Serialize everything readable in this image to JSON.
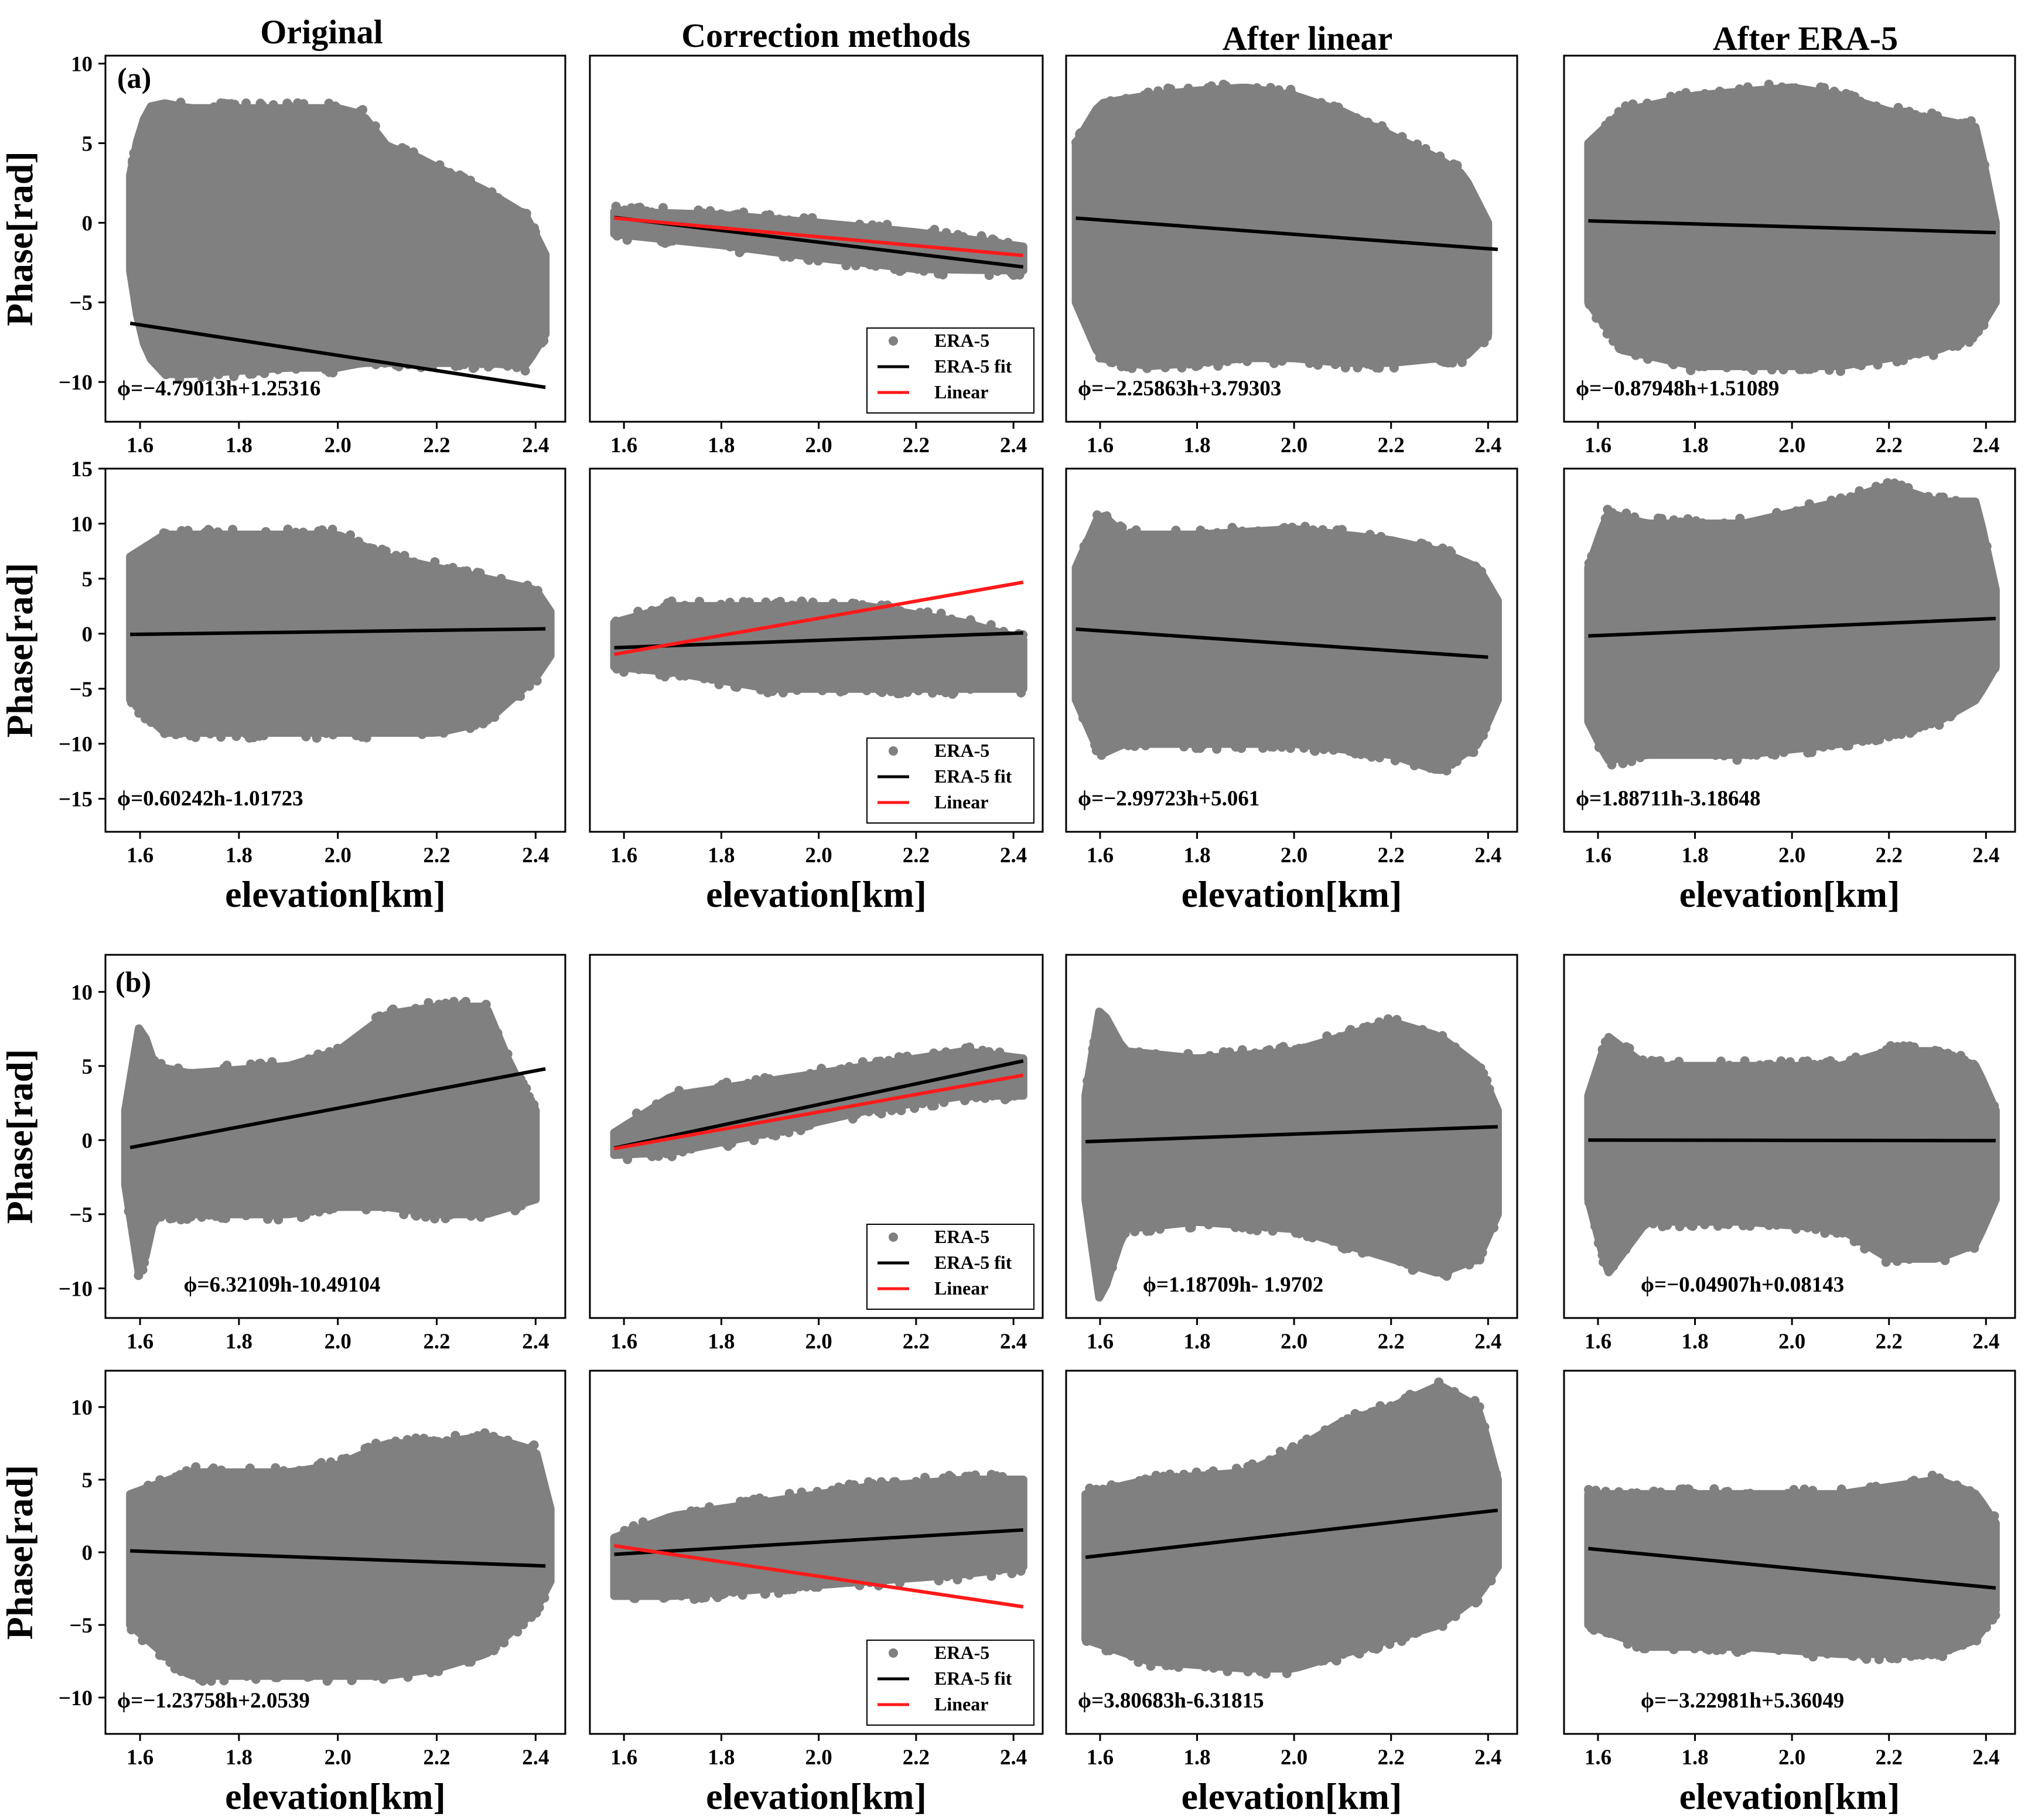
{
  "column_titles": [
    "Original",
    "Correction methods",
    "After linear",
    "After ERA-5"
  ],
  "panel_labels": {
    "a": "(a)",
    "b": "(b)"
  },
  "axis_labels": {
    "x": "elevation[km]",
    "y": "Phase[rad]"
  },
  "legend_labels": [
    "ERA-5",
    "ERA-5 fit",
    "Linear"
  ],
  "colors": {
    "scatter": "#808080",
    "fit": "#000000",
    "linear": "#ff1a1a",
    "frame": "#000000"
  },
  "chart_data": [
    {
      "id": "a1-original",
      "type": "scatter",
      "group": "a",
      "row": 0,
      "col": 0,
      "xlim": [
        1.53,
        2.46
      ],
      "ylim": [
        -12.5,
        10.5
      ],
      "xticks": [
        1.6,
        1.8,
        2.0,
        2.2,
        2.4
      ],
      "yticks": [
        -10,
        -5,
        0,
        5,
        10
      ],
      "ytick_labels": [
        "−10",
        "−5",
        "0",
        "5",
        "10"
      ],
      "show_yticks": true,
      "show_ylabel": true,
      "show_xlabel": false,
      "cloud": {
        "x": [
          1.58,
          1.6,
          1.62,
          1.65,
          1.7,
          1.8,
          1.9,
          2.0,
          2.05,
          2.1,
          2.15,
          2.2,
          2.3,
          2.38,
          2.42
        ],
        "upper": [
          3,
          6,
          7.3,
          7.5,
          7.2,
          7.2,
          7.2,
          7.2,
          6.8,
          4.8,
          4.3,
          3.5,
          2,
          0.5,
          -2
        ],
        "lower": [
          -3,
          -7,
          -8.5,
          -9.5,
          -9.5,
          -9.3,
          -9.1,
          -9.1,
          -8.8,
          -8.8,
          -8.8,
          -8.8,
          -8.8,
          -9,
          -7
        ]
      },
      "fit": {
        "slope": -4.79013,
        "intercept": 1.25316,
        "x": [
          1.58,
          2.42
        ]
      },
      "equation": "ϕ=−4.79013h+1.25316",
      "eq_pos": "bottom-left"
    },
    {
      "id": "a1-correction",
      "type": "scatter",
      "group": "a",
      "row": 0,
      "col": 1,
      "xlim": [
        1.53,
        2.46
      ],
      "ylim": [
        -12.5,
        10.5
      ],
      "xticks": [
        1.6,
        1.8,
        2.0,
        2.2,
        2.4
      ],
      "yticks": [],
      "show_yticks": false,
      "show_ylabel": false,
      "show_xlabel": false,
      "cloud": {
        "x": [
          1.58,
          1.8,
          2.0,
          2.2,
          2.42
        ],
        "upper": [
          0.7,
          0.5,
          0,
          -0.6,
          -1.5
        ],
        "lower": [
          -0.7,
          -1.4,
          -2.2,
          -2.9,
          -3
        ]
      },
      "fit": {
        "slope": -3.7,
        "intercept": 6.18,
        "x": [
          1.58,
          2.42
        ]
      },
      "linear": {
        "slope": -2.8,
        "intercept": 4.72,
        "x": [
          1.58,
          2.42
        ]
      },
      "legend": true
    },
    {
      "id": "a1-after-linear",
      "type": "scatter",
      "group": "a",
      "row": 0,
      "col": 2,
      "xlim": [
        1.53,
        2.46
      ],
      "ylim": [
        -12.5,
        10.5
      ],
      "xticks": [
        1.6,
        1.8,
        2.0,
        2.2,
        2.4
      ],
      "yticks": [],
      "show_yticks": false,
      "show_ylabel": false,
      "show_xlabel": false,
      "cloud": {
        "x": [
          1.55,
          1.6,
          1.7,
          1.8,
          1.9,
          2.0,
          2.1,
          2.2,
          2.3,
          2.35,
          2.4
        ],
        "upper": [
          5,
          7.5,
          8,
          8.3,
          8.5,
          8,
          7,
          5.5,
          4,
          3,
          0
        ],
        "lower": [
          -5,
          -8.5,
          -9,
          -8.8,
          -8.5,
          -8.5,
          -8.8,
          -8.8,
          -8.5,
          -8.5,
          -7
        ]
      },
      "fit": {
        "slope": -2.25863,
        "intercept": 3.79303,
        "x": [
          1.55,
          2.42
        ]
      },
      "equation": "ϕ=−2.25863h+3.79303",
      "eq_pos": "bottom-left"
    },
    {
      "id": "a1-after-era5",
      "type": "scatter",
      "group": "a",
      "row": 0,
      "col": 3,
      "xlim": [
        1.53,
        2.46
      ],
      "ylim": [
        -12.5,
        10.5
      ],
      "xticks": [
        1.6,
        1.8,
        2.0,
        2.2,
        2.4
      ],
      "yticks": [],
      "show_yticks": false,
      "show_ylabel": false,
      "show_xlabel": false,
      "cloud": {
        "x": [
          1.58,
          1.65,
          1.8,
          2.0,
          2.1,
          2.2,
          2.3,
          2.38,
          2.42
        ],
        "upper": [
          5,
          7,
          8,
          8.5,
          8,
          7,
          6.5,
          6,
          0
        ],
        "lower": [
          -5,
          -8,
          -9,
          -9,
          -9,
          -8.5,
          -8,
          -7,
          -5
        ]
      },
      "fit": {
        "slope": -0.87948,
        "intercept": 1.51089,
        "x": [
          1.58,
          2.42
        ]
      },
      "equation": "ϕ=−0.87948h+1.51089",
      "eq_pos": "bottom-left"
    },
    {
      "id": "a2-original",
      "type": "scatter",
      "group": "a",
      "row": 1,
      "col": 0,
      "xlim": [
        1.53,
        2.46
      ],
      "ylim": [
        -18,
        15
      ],
      "xticks": [
        1.6,
        1.8,
        2.0,
        2.2,
        2.4
      ],
      "yticks": [
        -15,
        -10,
        -5,
        0,
        5,
        10,
        15
      ],
      "ytick_labels": [
        "−15",
        "−10",
        "−5",
        "0",
        "5",
        "10",
        "15"
      ],
      "show_yticks": true,
      "show_ylabel": true,
      "show_xlabel": true,
      "cloud": {
        "x": [
          1.58,
          1.65,
          1.8,
          1.9,
          2.0,
          2.1,
          2.2,
          2.3,
          2.4,
          2.43
        ],
        "upper": [
          7,
          9,
          9,
          9,
          9,
          7,
          6,
          5,
          4,
          2
        ],
        "lower": [
          -6,
          -9,
          -9,
          -9,
          -9,
          -9,
          -9,
          -8,
          -4,
          -2
        ]
      },
      "fit": {
        "slope": 0.60242,
        "intercept": -1.01723,
        "x": [
          1.58,
          2.42
        ]
      },
      "equation": "ϕ=0.60242h-1.01723",
      "eq_pos": "bottom-left"
    },
    {
      "id": "a2-correction",
      "type": "scatter",
      "group": "a",
      "row": 1,
      "col": 1,
      "xlim": [
        1.53,
        2.46
      ],
      "ylim": [
        -18,
        15
      ],
      "xticks": [
        1.6,
        1.8,
        2.0,
        2.2,
        2.4
      ],
      "yticks": [],
      "show_yticks": false,
      "show_ylabel": false,
      "show_xlabel": true,
      "cloud": {
        "x": [
          1.58,
          1.7,
          1.9,
          2.1,
          2.3,
          2.42
        ],
        "upper": [
          1,
          2.5,
          2.5,
          2.5,
          1,
          -0.5
        ],
        "lower": [
          -3,
          -3.5,
          -5,
          -5,
          -5,
          -5
        ]
      },
      "fit": {
        "slope": 1.6,
        "intercept": -3.8,
        "x": [
          1.58,
          2.42
        ]
      },
      "linear": {
        "slope": 7.8,
        "intercept": -14.2,
        "x": [
          1.58,
          2.42
        ]
      },
      "legend": true
    },
    {
      "id": "a2-after-linear",
      "type": "scatter",
      "group": "a",
      "row": 1,
      "col": 2,
      "xlim": [
        1.53,
        2.46
      ],
      "ylim": [
        -18,
        15
      ],
      "xticks": [
        1.6,
        1.8,
        2.0,
        2.2,
        2.4
      ],
      "yticks": [],
      "show_yticks": false,
      "show_ylabel": false,
      "show_xlabel": true,
      "cloud": {
        "x": [
          1.55,
          1.6,
          1.65,
          1.8,
          2.0,
          2.2,
          2.3,
          2.38,
          2.42
        ],
        "upper": [
          6,
          11,
          9,
          9,
          9.5,
          8.5,
          7.5,
          6,
          3
        ],
        "lower": [
          -6,
          -11,
          -10,
          -10,
          -10,
          -11,
          -12.5,
          -10,
          -6
        ]
      },
      "fit": {
        "slope": -2.99723,
        "intercept": 5.061,
        "x": [
          1.55,
          2.4
        ]
      },
      "equation": "ϕ=−2.99723h+5.061",
      "eq_pos": "bottom-left"
    },
    {
      "id": "a2-after-era5",
      "type": "scatter",
      "group": "a",
      "row": 1,
      "col": 3,
      "xlim": [
        1.53,
        2.46
      ],
      "ylim": [
        -18,
        15
      ],
      "xticks": [
        1.6,
        1.8,
        2.0,
        2.2,
        2.4
      ],
      "yticks": [],
      "show_yticks": false,
      "show_ylabel": false,
      "show_xlabel": true,
      "cloud": {
        "x": [
          1.58,
          1.62,
          1.7,
          1.9,
          2.1,
          2.2,
          2.3,
          2.38,
          2.42
        ],
        "upper": [
          6,
          11,
          10,
          10,
          12,
          13.5,
          12,
          12,
          4
        ],
        "lower": [
          -8,
          -11.5,
          -11,
          -11,
          -10,
          -9,
          -8,
          -6,
          -3
        ]
      },
      "fit": {
        "slope": 1.88711,
        "intercept": -3.18648,
        "x": [
          1.58,
          2.42
        ]
      },
      "equation": "ϕ=1.88711h-3.18648",
      "eq_pos": "bottom-left"
    },
    {
      "id": "b1-original",
      "type": "scatter",
      "group": "b",
      "row": 2,
      "col": 0,
      "xlim": [
        1.53,
        2.46
      ],
      "ylim": [
        -12,
        12.5
      ],
      "xticks": [
        1.6,
        1.8,
        2.0,
        2.2,
        2.4
      ],
      "yticks": [
        -10,
        -5,
        0,
        5,
        10
      ],
      "ytick_labels": [
        "−10",
        "−5",
        "0",
        "5",
        "10"
      ],
      "show_yticks": true,
      "show_ylabel": true,
      "show_xlabel": false,
      "cloud": {
        "x": [
          1.57,
          1.6,
          1.63,
          1.7,
          1.9,
          2.0,
          2.1,
          2.2,
          2.3,
          2.35,
          2.4
        ],
        "upper": [
          2,
          8,
          5,
          4.5,
          5,
          6,
          8.5,
          9,
          9,
          5,
          2
        ],
        "lower": [
          -3,
          -9.5,
          -5,
          -5,
          -5,
          -4.5,
          -4.5,
          -5,
          -5,
          -4.5,
          -4
        ]
      },
      "fit": {
        "slope": 6.32109,
        "intercept": -10.49104,
        "x": [
          1.58,
          2.42
        ]
      },
      "equation": "ϕ=6.32109h-10.49104",
      "eq_pos": "bottom-center"
    },
    {
      "id": "b1-correction",
      "type": "scatter",
      "group": "b",
      "row": 2,
      "col": 1,
      "xlim": [
        1.53,
        2.46
      ],
      "ylim": [
        -12,
        12.5
      ],
      "xticks": [
        1.6,
        1.8,
        2.0,
        2.2,
        2.4
      ],
      "yticks": [],
      "show_yticks": false,
      "show_ylabel": false,
      "show_xlabel": false,
      "cloud": {
        "x": [
          1.58,
          1.7,
          1.9,
          2.1,
          2.3,
          2.42
        ],
        "upper": [
          0.5,
          3,
          4,
          5,
          6,
          5.5
        ],
        "lower": [
          -1,
          -0.8,
          0.5,
          2,
          3,
          3
        ]
      },
      "fit": {
        "slope": 7.0,
        "intercept": -11.6,
        "x": [
          1.58,
          2.42
        ]
      },
      "linear": {
        "slope": 5.9,
        "intercept": -9.9,
        "x": [
          1.58,
          2.42
        ]
      },
      "legend": true
    },
    {
      "id": "b1-after-linear",
      "type": "scatter",
      "group": "b",
      "row": 2,
      "col": 2,
      "xlim": [
        1.53,
        2.46
      ],
      "ylim": [
        -12,
        12.5
      ],
      "xticks": [
        1.6,
        1.8,
        2.0,
        2.2,
        2.4
      ],
      "yticks": [],
      "show_yticks": false,
      "show_ylabel": false,
      "show_xlabel": false,
      "cloud": {
        "x": [
          1.57,
          1.6,
          1.65,
          1.8,
          2.0,
          2.2,
          2.3,
          2.38,
          2.42
        ],
        "upper": [
          3,
          9,
          6,
          5.5,
          6,
          8,
          7,
          5,
          2
        ],
        "lower": [
          -4,
          -11,
          -6,
          -5.5,
          -6,
          -8,
          -9,
          -8,
          -5
        ]
      },
      "fit": {
        "slope": 1.18709,
        "intercept": -1.9702,
        "x": [
          1.57,
          2.42
        ]
      },
      "equation": "ϕ=1.18709h- 1.9702",
      "eq_pos": "bottom-center"
    },
    {
      "id": "b1-after-era5",
      "type": "scatter",
      "group": "b",
      "row": 2,
      "col": 3,
      "xlim": [
        1.53,
        2.46
      ],
      "ylim": [
        -12,
        12.5
      ],
      "xticks": [
        1.6,
        1.8,
        2.0,
        2.2,
        2.4
      ],
      "yticks": [],
      "show_yticks": false,
      "show_ylabel": false,
      "show_xlabel": false,
      "cloud": {
        "x": [
          1.58,
          1.62,
          1.7,
          1.9,
          2.1,
          2.2,
          2.3,
          2.38,
          2.42
        ],
        "upper": [
          3,
          7,
          5,
          5,
          5,
          6,
          6,
          5,
          2
        ],
        "lower": [
          -4,
          -9,
          -5.5,
          -5.5,
          -6,
          -8,
          -8,
          -7,
          -4
        ]
      },
      "fit": {
        "slope": -0.04907,
        "intercept": 0.08143,
        "x": [
          1.58,
          2.42
        ]
      },
      "equation": "ϕ=−0.04907h+0.08143",
      "eq_pos": "bottom-center"
    },
    {
      "id": "b2-original",
      "type": "scatter",
      "group": "b",
      "row": 3,
      "col": 0,
      "xlim": [
        1.53,
        2.46
      ],
      "ylim": [
        -12.5,
        12.5
      ],
      "xticks": [
        1.6,
        1.8,
        2.0,
        2.2,
        2.4
      ],
      "yticks": [
        -10,
        -5,
        0,
        5,
        10
      ],
      "ytick_labels": [
        "−10",
        "−5",
        "0",
        "5",
        "10"
      ],
      "show_yticks": true,
      "show_ylabel": true,
      "show_xlabel": true,
      "cloud": {
        "x": [
          1.58,
          1.7,
          1.9,
          2.0,
          2.1,
          2.2,
          2.3,
          2.4,
          2.43
        ],
        "upper": [
          4,
          5.5,
          5.5,
          6,
          7.5,
          7.5,
          8,
          7,
          3
        ],
        "lower": [
          -5,
          -8.5,
          -8.5,
          -8.5,
          -8.5,
          -8,
          -7,
          -4,
          -2
        ]
      },
      "fit": {
        "slope": -1.23758,
        "intercept": 2.0539,
        "x": [
          1.58,
          2.42
        ]
      },
      "equation": "ϕ=−1.23758h+2.0539",
      "eq_pos": "bottom-left"
    },
    {
      "id": "b2-correction",
      "type": "scatter",
      "group": "b",
      "row": 3,
      "col": 1,
      "xlim": [
        1.53,
        2.46
      ],
      "ylim": [
        -12.5,
        12.5
      ],
      "xticks": [
        1.6,
        1.8,
        2.0,
        2.2,
        2.4
      ],
      "yticks": [],
      "show_yticks": false,
      "show_ylabel": false,
      "show_xlabel": true,
      "cloud": {
        "x": [
          1.58,
          1.7,
          1.9,
          2.1,
          2.3,
          2.42
        ],
        "upper": [
          1,
          2.5,
          3.5,
          4.5,
          5,
          5
        ],
        "lower": [
          -3,
          -3,
          -2.5,
          -2,
          -1.5,
          -1
        ]
      },
      "fit": {
        "slope": 2.0,
        "intercept": -3.3,
        "x": [
          1.58,
          2.42
        ]
      },
      "linear": {
        "slope": -5.0,
        "intercept": 8.35,
        "x": [
          1.58,
          2.42
        ]
      },
      "legend": true
    },
    {
      "id": "b2-after-linear",
      "type": "scatter",
      "group": "b",
      "row": 3,
      "col": 2,
      "xlim": [
        1.53,
        2.46
      ],
      "ylim": [
        -12.5,
        12.5
      ],
      "xticks": [
        1.6,
        1.8,
        2.0,
        2.2,
        2.4
      ],
      "yticks": [],
      "show_yticks": false,
      "show_ylabel": false,
      "show_xlabel": true,
      "cloud": {
        "x": [
          1.57,
          1.7,
          1.9,
          2.0,
          2.1,
          2.2,
          2.3,
          2.38,
          2.42
        ],
        "upper": [
          4,
          5,
          5.5,
          7,
          9,
          10,
          11.5,
          10,
          5
        ],
        "lower": [
          -6,
          -7.5,
          -8,
          -8,
          -7,
          -6,
          -5,
          -3,
          -1
        ]
      },
      "fit": {
        "slope": 3.80683,
        "intercept": -6.31815,
        "x": [
          1.57,
          2.42
        ]
      },
      "equation": "ϕ=3.80683h-6.31815",
      "eq_pos": "bottom-left"
    },
    {
      "id": "b2-after-era5",
      "type": "scatter",
      "group": "b",
      "row": 3,
      "col": 3,
      "xlim": [
        1.53,
        2.46
      ],
      "ylim": [
        -12.5,
        12.5
      ],
      "xticks": [
        1.6,
        1.8,
        2.0,
        2.2,
        2.4
      ],
      "yticks": [],
      "show_yticks": false,
      "show_ylabel": false,
      "show_xlabel": true,
      "cloud": {
        "x": [
          1.58,
          1.7,
          1.9,
          2.1,
          2.2,
          2.3,
          2.38,
          2.42
        ],
        "upper": [
          4,
          4,
          4,
          4,
          4.5,
          5,
          4,
          2
        ],
        "lower": [
          -5,
          -6.5,
          -6.5,
          -7,
          -7,
          -7,
          -6,
          -4
        ]
      },
      "fit": {
        "slope": -3.22981,
        "intercept": 5.36049,
        "x": [
          1.58,
          2.42
        ]
      },
      "equation": "ϕ=−3.22981h+5.36049",
      "eq_pos": "bottom-center"
    }
  ]
}
